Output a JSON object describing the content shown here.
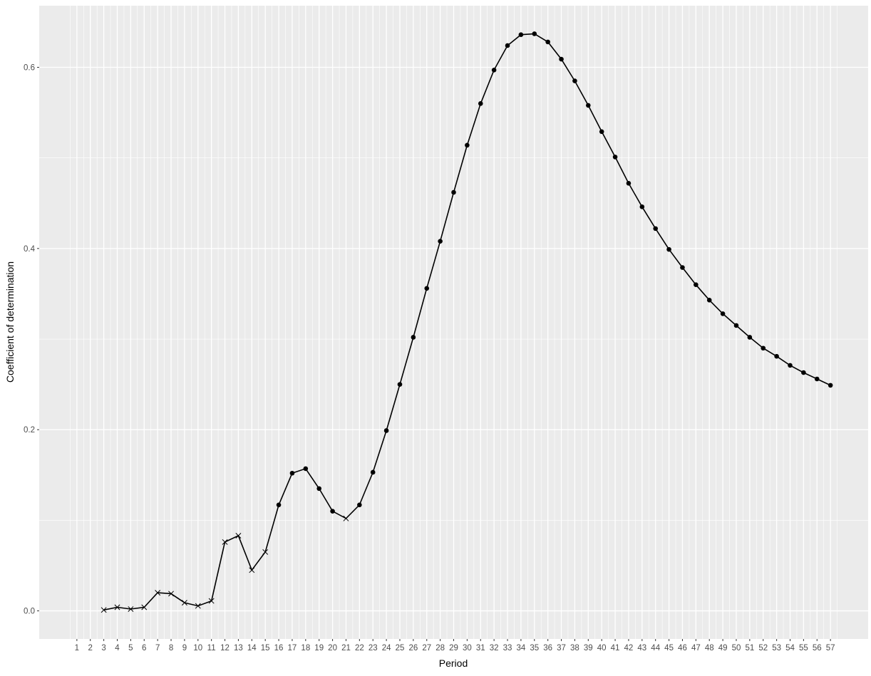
{
  "chart_data": {
    "type": "line",
    "title": "",
    "xlabel": "Period",
    "ylabel": "Coefficient of determination",
    "x_ticks": [
      1,
      2,
      3,
      4,
      5,
      6,
      7,
      8,
      9,
      10,
      11,
      12,
      13,
      14,
      15,
      16,
      17,
      18,
      19,
      20,
      21,
      22,
      23,
      24,
      25,
      26,
      27,
      28,
      29,
      30,
      31,
      32,
      33,
      34,
      35,
      36,
      37,
      38,
      39,
      40,
      41,
      42,
      43,
      44,
      45,
      46,
      47,
      48,
      49,
      50,
      51,
      52,
      53,
      54,
      55,
      56,
      57
    ],
    "y_ticks": [
      0.0,
      0.2,
      0.4,
      0.6
    ],
    "y_tick_labels": [
      "0.0",
      "0.2",
      "0.4",
      "0.6"
    ],
    "ylim": [
      -0.031,
      0.668
    ],
    "grid": true,
    "background": "#EBEBEB",
    "line_color": "#000000",
    "series": [
      {
        "x": [
          3,
          4,
          5,
          6,
          7,
          8,
          9,
          10,
          11,
          12,
          13,
          14,
          15,
          16,
          17,
          18,
          19,
          20,
          21,
          22,
          23,
          24,
          25,
          26,
          27,
          28,
          29,
          30,
          31,
          32,
          33,
          34,
          35,
          36,
          37,
          38,
          39,
          40,
          41,
          42,
          43,
          44,
          45,
          46,
          47,
          48,
          49,
          50,
          51,
          52,
          53,
          54,
          55,
          56,
          57
        ],
        "values": [
          0.001,
          0.004,
          0.002,
          0.004,
          0.02,
          0.019,
          0.009,
          0.0055,
          0.011,
          0.076,
          0.083,
          0.045,
          0.065,
          0.117,
          0.152,
          0.157,
          0.135,
          0.11,
          0.102,
          0.117,
          0.153,
          0.199,
          0.25,
          0.302,
          0.356,
          0.408,
          0.462,
          0.514,
          0.56,
          0.597,
          0.624,
          0.636,
          0.637,
          0.628,
          0.609,
          0.585,
          0.558,
          0.529,
          0.501,
          0.472,
          0.446,
          0.422,
          0.399,
          0.379,
          0.36,
          0.343,
          0.328,
          0.315,
          0.302,
          0.29,
          0.281,
          0.271,
          0.263,
          0.256,
          0.249
        ],
        "markers": [
          "cross",
          "cross",
          "cross",
          "cross",
          "cross",
          "cross",
          "cross",
          "cross",
          "cross",
          "cross",
          "cross",
          "cross",
          "cross",
          "dot",
          "dot",
          "dot",
          "dot",
          "dot",
          "cross",
          "dot",
          "dot",
          "dot",
          "dot",
          "dot",
          "dot",
          "dot",
          "dot",
          "dot",
          "dot",
          "dot",
          "dot",
          "dot",
          "dot",
          "dot",
          "dot",
          "dot",
          "dot",
          "dot",
          "dot",
          "dot",
          "dot",
          "dot",
          "dot",
          "dot",
          "dot",
          "dot",
          "dot",
          "dot",
          "dot",
          "dot",
          "dot",
          "dot",
          "dot",
          "dot",
          "dot"
        ]
      }
    ]
  }
}
